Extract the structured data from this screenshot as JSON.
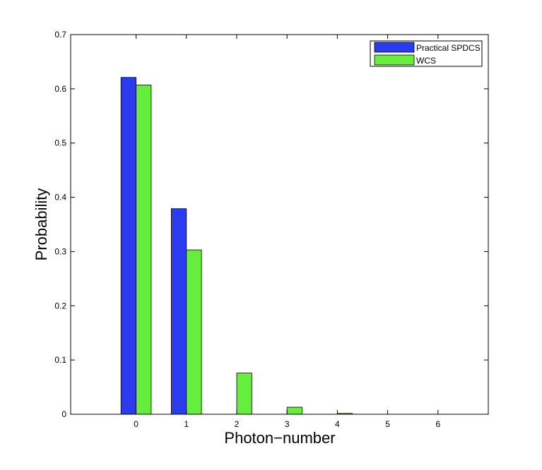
{
  "chart_data": {
    "type": "bar",
    "title": "",
    "xlabel": "Photon−number",
    "ylabel": "Probability",
    "categories": [
      "0",
      "1",
      "2",
      "3",
      "4",
      "5",
      "6"
    ],
    "x_ticks": [
      "0",
      "1",
      "2",
      "3",
      "4",
      "5",
      "6"
    ],
    "y_ticks": [
      "0",
      "0.1",
      "0.2",
      "0.3",
      "0.4",
      "0.5",
      "0.6",
      "0.7"
    ],
    "xlim": [
      -1.3,
      7.0
    ],
    "ylim": [
      0,
      0.7
    ],
    "grid": false,
    "legend_position": "top-right",
    "series": [
      {
        "name": "Practical SPDCS",
        "color": "#2b3cf0",
        "values": [
          0.621,
          0.379,
          0.0003,
          0.0,
          0.0,
          0.0,
          0.0
        ]
      },
      {
        "name": "WCS",
        "color": "#66ee3c",
        "values": [
          0.607,
          0.303,
          0.076,
          0.013,
          0.0015,
          0.0001,
          0.0
        ]
      }
    ]
  }
}
